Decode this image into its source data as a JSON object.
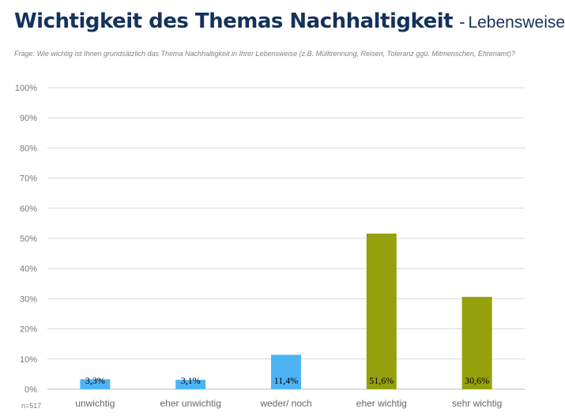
{
  "title": "Wichtigkeit des Themas Nachhaltigkeit",
  "separator": "-",
  "subtitle": "Lebensweise",
  "question": "Frage: Wie wichtig ist Ihnen grundsätzlich das Thema Nachhaltigkeit in Ihrer Lebensweise (z.B. Mülltrennung, Reisen, Toleranz ggü. Mitmenschen, Ehrenamt)?",
  "sample_size": "n=517",
  "colors": {
    "title": "#14325a",
    "low": "#4db3f5",
    "high": "#94a10c",
    "grid": "#d9d9d9"
  },
  "chart_data": {
    "type": "bar",
    "categories": [
      "unwichtig",
      "eher unwichtig",
      "weder/ noch",
      "eher wichtig",
      "sehr wichtig"
    ],
    "values": [
      3.3,
      3.1,
      11.4,
      51.6,
      30.6
    ],
    "value_labels": [
      "3,3%",
      "3,1%",
      "11,4%",
      "51,6%",
      "30,6%"
    ],
    "bar_colors": [
      "#4db3f5",
      "#4db3f5",
      "#4db3f5",
      "#94a10c",
      "#94a10c"
    ],
    "ylim": [
      0,
      100
    ],
    "yticks": [
      0,
      10,
      20,
      30,
      40,
      50,
      60,
      70,
      80,
      90,
      100
    ],
    "ytick_labels": [
      "0%",
      "10%",
      "20%",
      "30%",
      "40%",
      "50%",
      "60%",
      "70%",
      "80%",
      "90%",
      "100%"
    ],
    "grid": true,
    "legend": "none"
  }
}
